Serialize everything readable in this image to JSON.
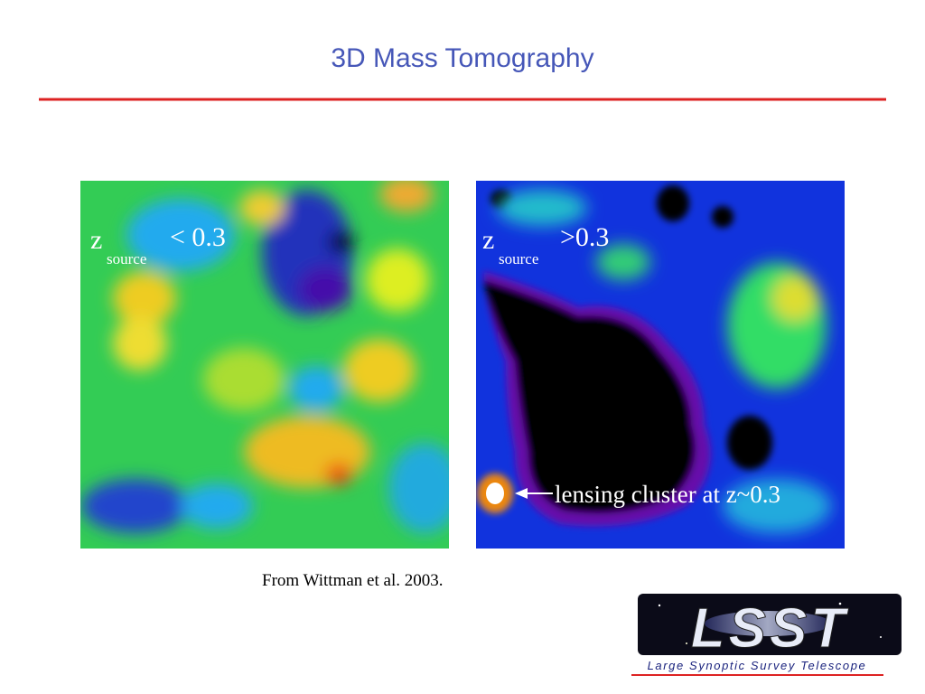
{
  "title": "3D Mass Tomography",
  "panels": [
    {
      "z_label": "z",
      "subscript": "source",
      "condition": "< 0.3"
    },
    {
      "z_label": "z",
      "subscript": "source",
      "condition": ">0.3",
      "annotation": "lensing cluster at z~0.3"
    }
  ],
  "caption": "From Wittman et al. 2003.",
  "logo": {
    "mark": "LSST",
    "name": "Large Synoptic Survey Telescope"
  }
}
